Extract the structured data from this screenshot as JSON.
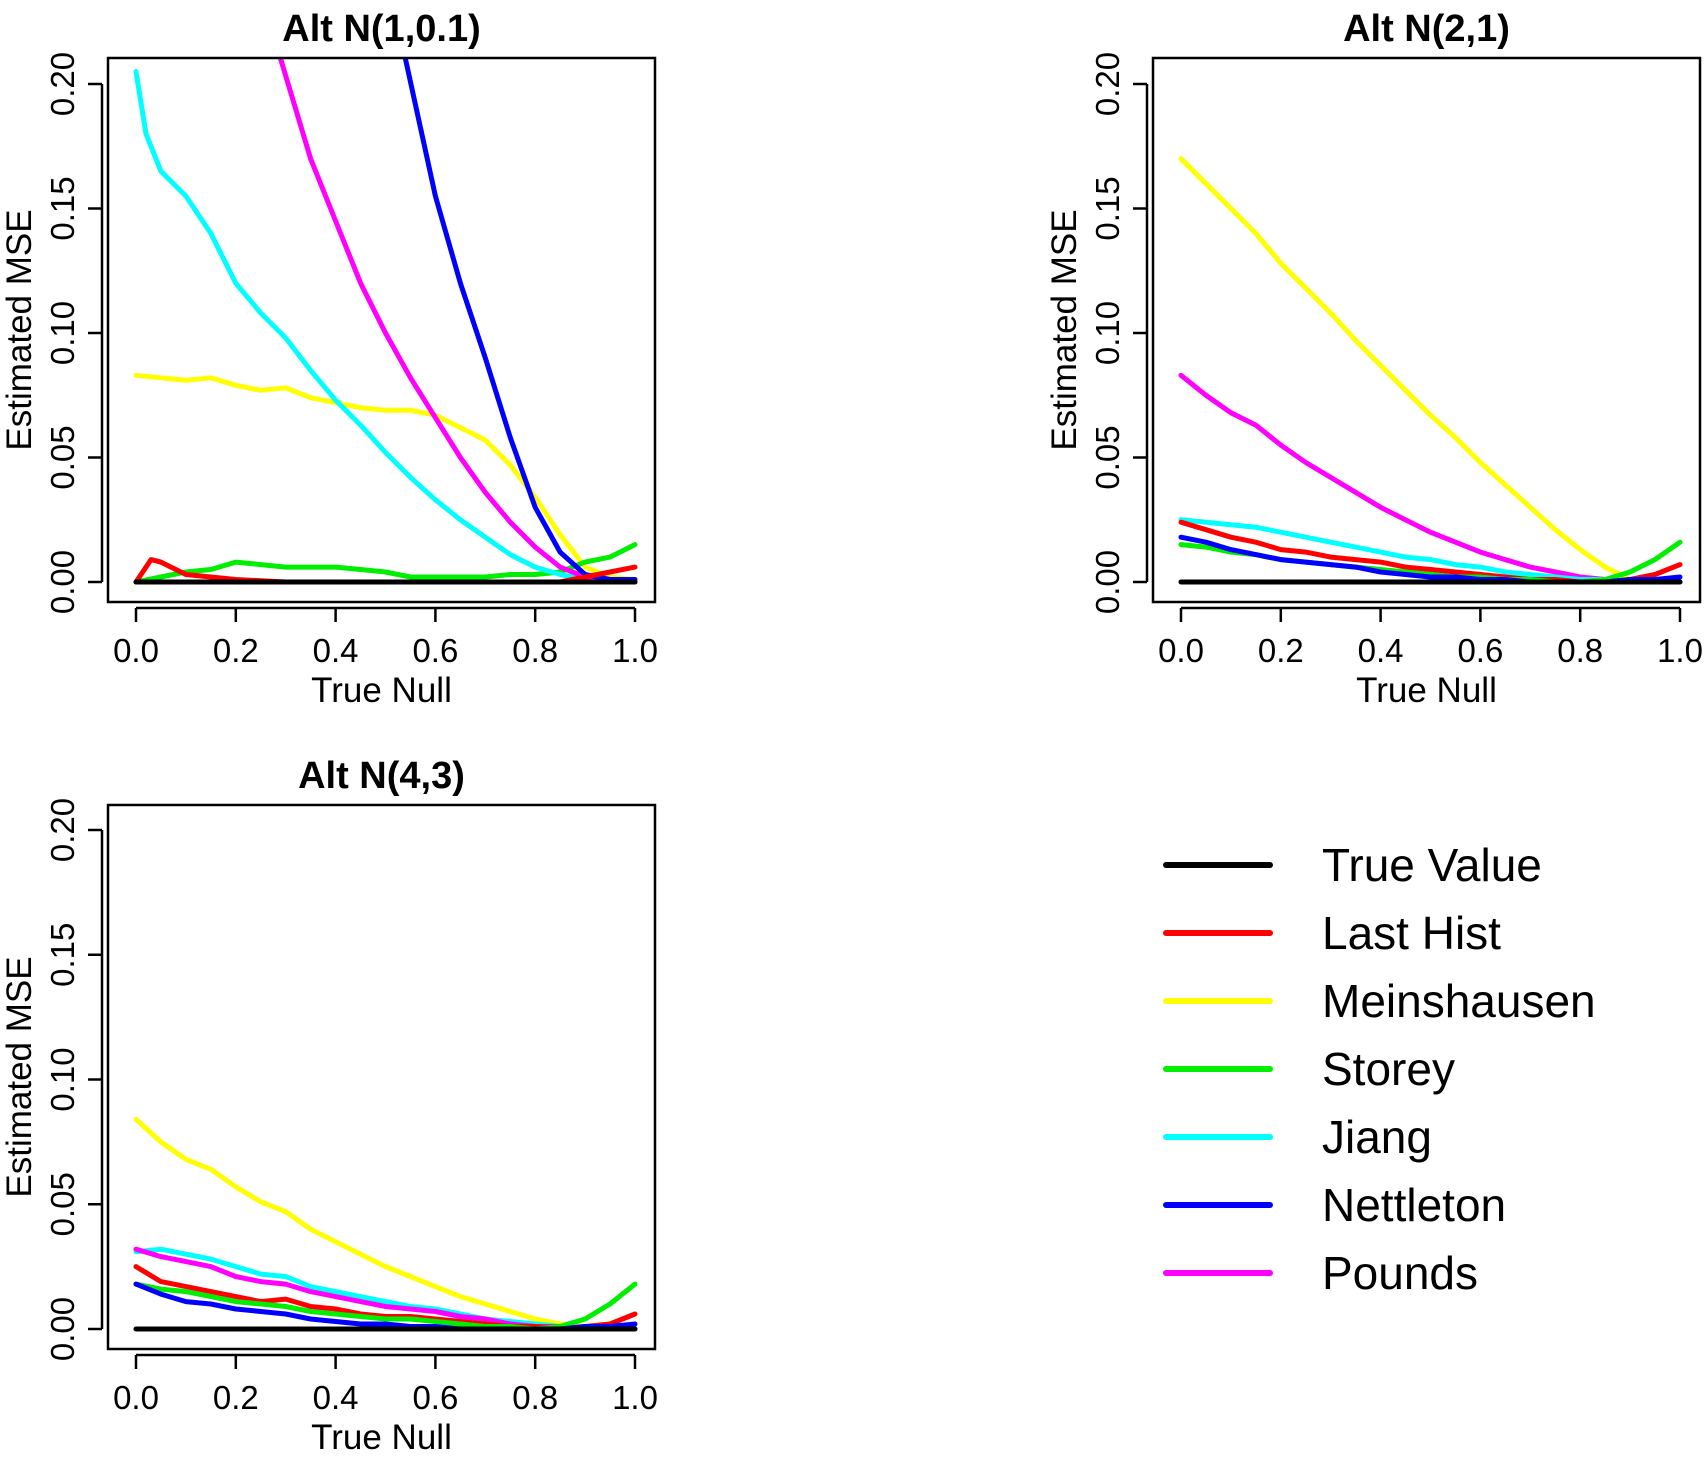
{
  "colors": {
    "True Value": "#000000",
    "Last Hist": "#ff0000",
    "Meinshausen": "#ffff00",
    "Storey": "#00ee00",
    "Jiang": "#00ffff",
    "Nettleton": "#0000ff",
    "Pounds": "#ff00ff"
  },
  "legend": {
    "placement": "bottom-right",
    "entries": [
      "True Value",
      "Last Hist",
      "Meinshausen",
      "Storey",
      "Jiang",
      "Nettleton",
      "Pounds"
    ]
  },
  "chart_data": [
    {
      "type": "line",
      "title": "Alt N(1,0.1)",
      "xlabel": "True Null",
      "ylabel": "Estimated MSE",
      "xlim": [
        0,
        1
      ],
      "ylim": [
        0,
        0.2
      ],
      "xticks": [
        "0.0",
        "0.2",
        "0.4",
        "0.6",
        "0.8",
        "1.0"
      ],
      "yticks": [
        "0.00",
        "0.05",
        "0.10",
        "0.15",
        "0.20"
      ],
      "grid": false,
      "series": [
        {
          "name": "Meinshausen",
          "x": [
            0,
            0.05,
            0.1,
            0.15,
            0.2,
            0.25,
            0.3,
            0.35,
            0.4,
            0.45,
            0.5,
            0.55,
            0.6,
            0.65,
            0.7,
            0.75,
            0.8,
            0.85,
            0.9,
            0.95,
            1.0
          ],
          "y": [
            0.083,
            0.082,
            0.081,
            0.082,
            0.079,
            0.077,
            0.078,
            0.074,
            0.072,
            0.07,
            0.069,
            0.069,
            0.067,
            0.062,
            0.057,
            0.047,
            0.034,
            0.019,
            0.006,
            0.002,
            0.001
          ]
        },
        {
          "name": "Storey",
          "x": [
            0,
            0.05,
            0.1,
            0.15,
            0.2,
            0.25,
            0.3,
            0.35,
            0.4,
            0.45,
            0.5,
            0.55,
            0.6,
            0.65,
            0.7,
            0.75,
            0.8,
            0.85,
            0.9,
            0.95,
            1.0
          ],
          "y": [
            0.0,
            0.002,
            0.004,
            0.005,
            0.008,
            0.007,
            0.006,
            0.006,
            0.006,
            0.005,
            0.004,
            0.002,
            0.002,
            0.002,
            0.002,
            0.003,
            0.003,
            0.004,
            0.008,
            0.01,
            0.015
          ]
        },
        {
          "name": "Jiang",
          "x": [
            0,
            0.02,
            0.05,
            0.1,
            0.15,
            0.2,
            0.25,
            0.3,
            0.35,
            0.4,
            0.45,
            0.5,
            0.55,
            0.6,
            0.65,
            0.7,
            0.75,
            0.8,
            0.85,
            0.9,
            0.95,
            1.0
          ],
          "y": [
            0.205,
            0.18,
            0.165,
            0.155,
            0.14,
            0.12,
            0.108,
            0.098,
            0.085,
            0.073,
            0.063,
            0.052,
            0.042,
            0.033,
            0.025,
            0.018,
            0.011,
            0.006,
            0.003,
            0.001,
            0.0,
            0.0
          ]
        },
        {
          "name": "Pounds",
          "x": [
            0.29,
            0.35,
            0.4,
            0.45,
            0.5,
            0.55,
            0.6,
            0.65,
            0.7,
            0.75,
            0.8,
            0.85,
            0.9,
            0.95,
            1.0
          ],
          "y": [
            0.21,
            0.17,
            0.145,
            0.12,
            0.1,
            0.082,
            0.066,
            0.05,
            0.036,
            0.024,
            0.014,
            0.006,
            0.002,
            0.0,
            0.0
          ]
        },
        {
          "name": "Nettleton",
          "x": [
            0.54,
            0.6,
            0.65,
            0.7,
            0.75,
            0.8,
            0.85,
            0.9,
            0.95,
            1.0
          ],
          "y": [
            0.21,
            0.155,
            0.12,
            0.09,
            0.058,
            0.03,
            0.012,
            0.003,
            0.001,
            0.001
          ]
        },
        {
          "name": "Last Hist",
          "x": [
            0,
            0.03,
            0.05,
            0.1,
            0.15,
            0.2,
            0.3,
            0.4,
            0.5,
            0.6,
            0.7,
            0.8,
            0.85,
            0.9,
            0.95,
            1.0
          ],
          "y": [
            0.0,
            0.009,
            0.008,
            0.003,
            0.002,
            0.001,
            0.0,
            0.0,
            0.0,
            0.0,
            0.0,
            0.0,
            0.0,
            0.002,
            0.004,
            0.006
          ]
        },
        {
          "name": "True Value",
          "x": [
            0,
            1.0
          ],
          "y": [
            0.0,
            0.0
          ]
        }
      ]
    },
    {
      "type": "line",
      "title": "Alt N(2,1)",
      "xlabel": "True Null",
      "ylabel": "Estimated MSE",
      "xlim": [
        0,
        1
      ],
      "ylim": [
        0,
        0.2
      ],
      "xticks": [
        "0.0",
        "0.2",
        "0.4",
        "0.6",
        "0.8",
        "1.0"
      ],
      "yticks": [
        "0.00",
        "0.05",
        "0.10",
        "0.15",
        "0.20"
      ],
      "grid": false,
      "series": [
        {
          "name": "Meinshausen",
          "x": [
            0,
            0.05,
            0.1,
            0.15,
            0.2,
            0.25,
            0.3,
            0.35,
            0.4,
            0.45,
            0.5,
            0.55,
            0.6,
            0.65,
            0.7,
            0.75,
            0.8,
            0.85,
            0.9,
            0.95,
            1.0
          ],
          "y": [
            0.17,
            0.16,
            0.15,
            0.14,
            0.128,
            0.118,
            0.108,
            0.097,
            0.087,
            0.077,
            0.067,
            0.058,
            0.048,
            0.039,
            0.03,
            0.021,
            0.013,
            0.006,
            0.001,
            0.0,
            0.0
          ]
        },
        {
          "name": "Pounds",
          "x": [
            0,
            0.05,
            0.1,
            0.15,
            0.2,
            0.25,
            0.3,
            0.35,
            0.4,
            0.45,
            0.5,
            0.55,
            0.6,
            0.65,
            0.7,
            0.75,
            0.8,
            0.85,
            0.9,
            0.95,
            1.0
          ],
          "y": [
            0.083,
            0.075,
            0.068,
            0.063,
            0.055,
            0.048,
            0.042,
            0.036,
            0.03,
            0.025,
            0.02,
            0.016,
            0.012,
            0.009,
            0.006,
            0.004,
            0.002,
            0.001,
            0.0,
            0.0,
            0.0
          ]
        },
        {
          "name": "Jiang",
          "x": [
            0,
            0.05,
            0.1,
            0.15,
            0.2,
            0.25,
            0.3,
            0.35,
            0.4,
            0.45,
            0.5,
            0.55,
            0.6,
            0.65,
            0.7,
            0.75,
            0.8,
            0.85,
            0.9,
            0.95,
            1.0
          ],
          "y": [
            0.025,
            0.024,
            0.023,
            0.022,
            0.02,
            0.018,
            0.016,
            0.014,
            0.012,
            0.01,
            0.009,
            0.007,
            0.006,
            0.004,
            0.003,
            0.002,
            0.001,
            0.001,
            0.0,
            0.0,
            0.0
          ]
        },
        {
          "name": "Last Hist",
          "x": [
            0,
            0.05,
            0.1,
            0.15,
            0.2,
            0.25,
            0.3,
            0.35,
            0.4,
            0.45,
            0.5,
            0.55,
            0.6,
            0.65,
            0.7,
            0.75,
            0.8,
            0.85,
            0.9,
            0.95,
            1.0
          ],
          "y": [
            0.024,
            0.021,
            0.018,
            0.016,
            0.013,
            0.012,
            0.01,
            0.009,
            0.008,
            0.006,
            0.005,
            0.004,
            0.003,
            0.002,
            0.001,
            0.001,
            0.0,
            0.0,
            0.001,
            0.003,
            0.007
          ]
        },
        {
          "name": "Storey",
          "x": [
            0,
            0.05,
            0.1,
            0.15,
            0.2,
            0.25,
            0.3,
            0.35,
            0.4,
            0.45,
            0.5,
            0.55,
            0.6,
            0.65,
            0.7,
            0.75,
            0.8,
            0.85,
            0.9,
            0.95,
            1.0
          ],
          "y": [
            0.015,
            0.014,
            0.012,
            0.011,
            0.009,
            0.008,
            0.007,
            0.006,
            0.005,
            0.004,
            0.003,
            0.002,
            0.002,
            0.001,
            0.001,
            0.0,
            0.0,
            0.001,
            0.004,
            0.009,
            0.016
          ]
        },
        {
          "name": "Nettleton",
          "x": [
            0,
            0.05,
            0.1,
            0.15,
            0.2,
            0.25,
            0.3,
            0.35,
            0.4,
            0.45,
            0.5,
            0.55,
            0.6,
            0.65,
            0.7,
            0.75,
            0.8,
            0.85,
            0.9,
            0.95,
            1.0
          ],
          "y": [
            0.018,
            0.016,
            0.013,
            0.011,
            0.009,
            0.008,
            0.007,
            0.006,
            0.004,
            0.003,
            0.002,
            0.002,
            0.001,
            0.001,
            0.0,
            0.0,
            0.0,
            0.0,
            0.001,
            0.001,
            0.002
          ]
        },
        {
          "name": "True Value",
          "x": [
            0,
            1.0
          ],
          "y": [
            0.0,
            0.0
          ]
        }
      ]
    },
    {
      "type": "line",
      "title": "Alt N(4,3)",
      "xlabel": "True Null",
      "ylabel": "Estimated MSE",
      "xlim": [
        0,
        1
      ],
      "ylim": [
        0,
        0.2
      ],
      "xticks": [
        "0.0",
        "0.2",
        "0.4",
        "0.6",
        "0.8",
        "1.0"
      ],
      "yticks": [
        "0.00",
        "0.05",
        "0.10",
        "0.15",
        "0.20"
      ],
      "grid": false,
      "series": [
        {
          "name": "Meinshausen",
          "x": [
            0,
            0.05,
            0.1,
            0.15,
            0.2,
            0.25,
            0.3,
            0.35,
            0.4,
            0.45,
            0.5,
            0.55,
            0.6,
            0.65,
            0.7,
            0.75,
            0.8,
            0.85,
            0.9,
            0.95,
            1.0
          ],
          "y": [
            0.084,
            0.075,
            0.068,
            0.064,
            0.057,
            0.051,
            0.047,
            0.04,
            0.035,
            0.03,
            0.025,
            0.021,
            0.017,
            0.013,
            0.01,
            0.007,
            0.004,
            0.002,
            0.001,
            0.0,
            0.0
          ]
        },
        {
          "name": "Jiang",
          "x": [
            0,
            0.05,
            0.1,
            0.15,
            0.2,
            0.25,
            0.3,
            0.35,
            0.4,
            0.45,
            0.5,
            0.55,
            0.6,
            0.65,
            0.7,
            0.75,
            0.8,
            0.85,
            0.9,
            0.95,
            1.0
          ],
          "y": [
            0.031,
            0.032,
            0.03,
            0.028,
            0.025,
            0.022,
            0.021,
            0.017,
            0.015,
            0.013,
            0.011,
            0.009,
            0.008,
            0.006,
            0.004,
            0.003,
            0.002,
            0.001,
            0.0,
            0.0,
            0.0
          ]
        },
        {
          "name": "Pounds",
          "x": [
            0,
            0.05,
            0.1,
            0.15,
            0.2,
            0.25,
            0.3,
            0.35,
            0.4,
            0.45,
            0.5,
            0.55,
            0.6,
            0.65,
            0.7,
            0.75,
            0.8,
            0.85,
            0.9,
            0.95,
            1.0
          ],
          "y": [
            0.032,
            0.029,
            0.027,
            0.025,
            0.021,
            0.019,
            0.018,
            0.015,
            0.013,
            0.011,
            0.009,
            0.008,
            0.007,
            0.005,
            0.004,
            0.002,
            0.001,
            0.001,
            0.0,
            0.0,
            0.0
          ]
        },
        {
          "name": "Last Hist",
          "x": [
            0,
            0.05,
            0.1,
            0.15,
            0.2,
            0.25,
            0.3,
            0.35,
            0.4,
            0.45,
            0.5,
            0.55,
            0.6,
            0.65,
            0.7,
            0.75,
            0.8,
            0.85,
            0.9,
            0.95,
            1.0
          ],
          "y": [
            0.025,
            0.019,
            0.017,
            0.015,
            0.013,
            0.011,
            0.012,
            0.009,
            0.008,
            0.006,
            0.005,
            0.005,
            0.004,
            0.003,
            0.002,
            0.001,
            0.001,
            0.0,
            0.001,
            0.002,
            0.006
          ]
        },
        {
          "name": "Storey",
          "x": [
            0,
            0.05,
            0.1,
            0.15,
            0.2,
            0.25,
            0.3,
            0.35,
            0.4,
            0.45,
            0.5,
            0.55,
            0.6,
            0.65,
            0.7,
            0.75,
            0.8,
            0.85,
            0.9,
            0.95,
            1.0
          ],
          "y": [
            0.018,
            0.016,
            0.015,
            0.013,
            0.011,
            0.01,
            0.009,
            0.007,
            0.006,
            0.005,
            0.004,
            0.004,
            0.003,
            0.002,
            0.001,
            0.001,
            0.0,
            0.001,
            0.004,
            0.01,
            0.018
          ]
        },
        {
          "name": "Nettleton",
          "x": [
            0,
            0.05,
            0.1,
            0.15,
            0.2,
            0.25,
            0.3,
            0.35,
            0.4,
            0.45,
            0.5,
            0.55,
            0.6,
            0.65,
            0.7,
            0.75,
            0.8,
            0.85,
            0.9,
            0.95,
            1.0
          ],
          "y": [
            0.018,
            0.014,
            0.011,
            0.01,
            0.008,
            0.007,
            0.006,
            0.004,
            0.003,
            0.002,
            0.002,
            0.001,
            0.001,
            0.0,
            0.0,
            0.0,
            0.0,
            0.0,
            0.001,
            0.001,
            0.002
          ]
        },
        {
          "name": "True Value",
          "x": [
            0,
            1.0
          ],
          "y": [
            0.0,
            0.0
          ]
        }
      ]
    }
  ]
}
